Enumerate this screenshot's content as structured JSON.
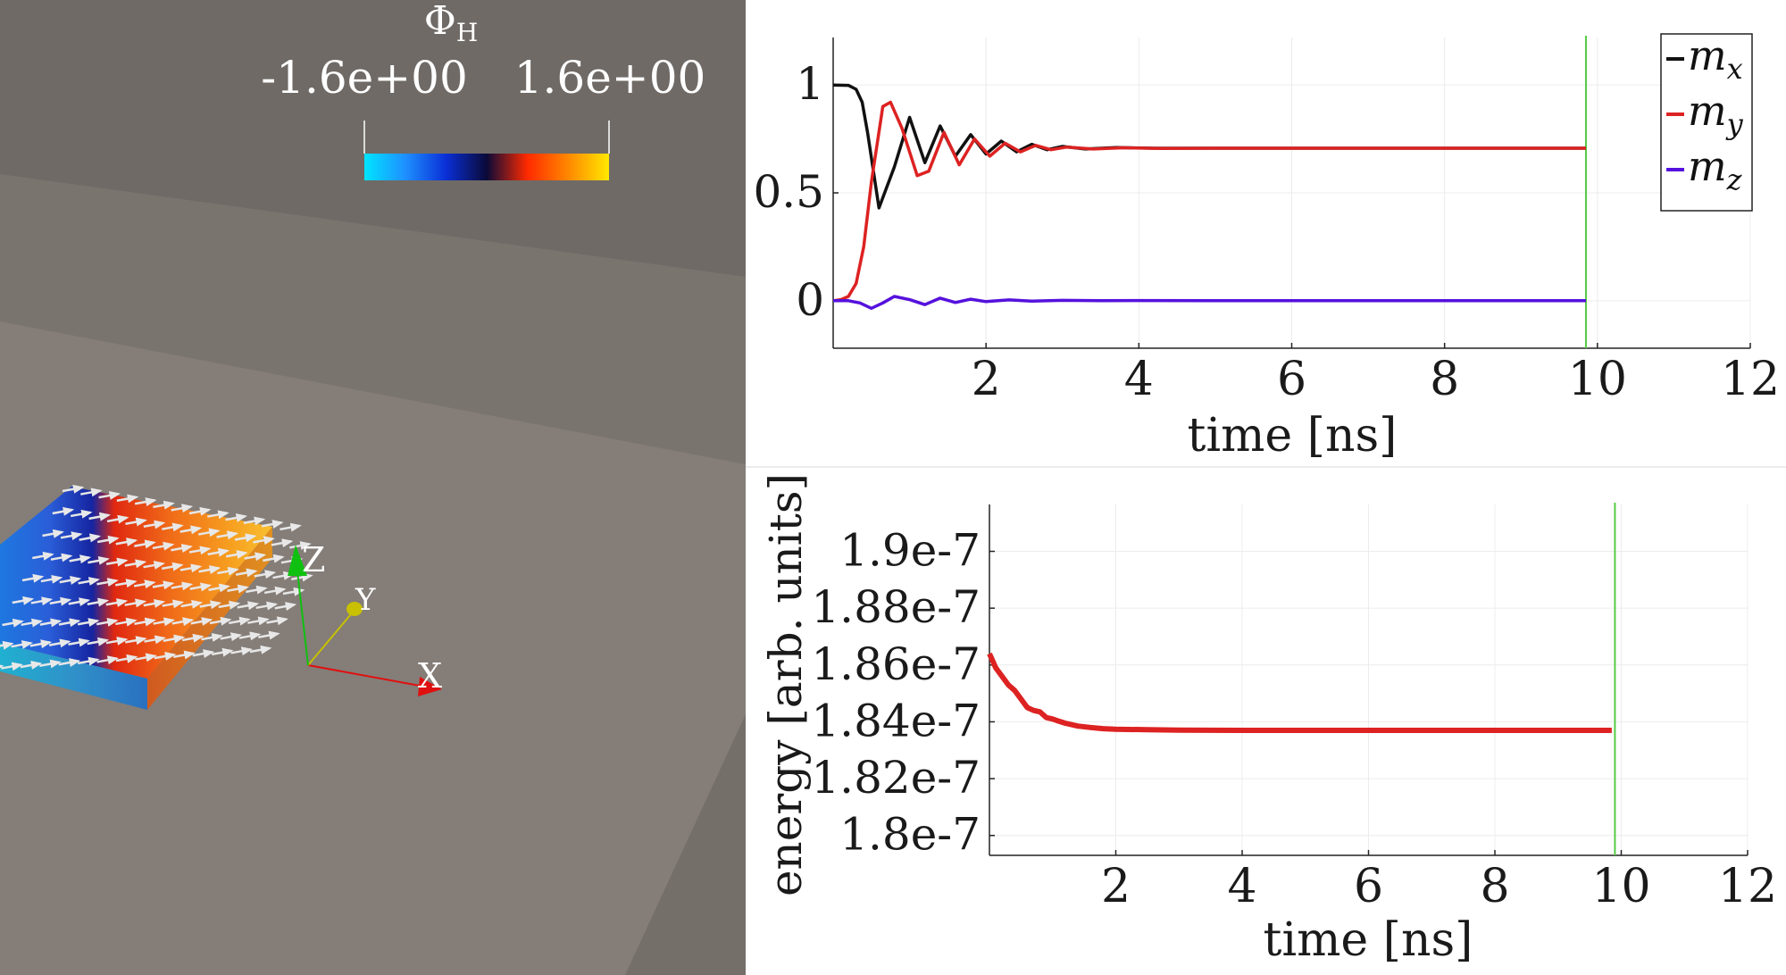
{
  "scene": {
    "colorbar": {
      "title": "Φ",
      "title_sub": "H",
      "min_label": "-1.6e+00",
      "max_label": "1.6e+00",
      "gradient": [
        "#00e5ff",
        "#1e90ff",
        "#0a2fd6",
        "#0a0a38",
        "#ff2a00",
        "#ff8800",
        "#ffe800"
      ]
    },
    "axes": {
      "x_label": "X",
      "y_label": "Y",
      "z_label": "Z",
      "x_color": "#e01010",
      "y_color": "#c8c000",
      "z_color": "#10c010"
    },
    "background_colors": [
      "#6f6a66",
      "#7a746f",
      "#847d78"
    ]
  },
  "chart_data": [
    {
      "type": "line",
      "xlabel": "time [ns]",
      "ylabel": "",
      "xlim": [
        0,
        12
      ],
      "ylim": [
        -0.22,
        1.22
      ],
      "xticks": [
        2,
        4,
        6,
        8,
        10,
        12
      ],
      "yticks": [
        0,
        0.5,
        1
      ],
      "ytick_labels": [
        "0",
        "0.5",
        "1"
      ],
      "grid": true,
      "legend": "top-right",
      "marker_line_x": 9.85,
      "marker_line_color": "#55cc44",
      "series": [
        {
          "name": "m",
          "sub": "x",
          "color": "#111111",
          "x": [
            0,
            0.2,
            0.3,
            0.38,
            0.45,
            0.6,
            0.8,
            1.0,
            1.2,
            1.4,
            1.6,
            1.8,
            2.0,
            2.2,
            2.4,
            2.6,
            2.8,
            3.0,
            3.3,
            3.7,
            4.2,
            5,
            9.85
          ],
          "y": [
            1.0,
            0.998,
            0.98,
            0.92,
            0.78,
            0.43,
            0.62,
            0.85,
            0.64,
            0.81,
            0.67,
            0.77,
            0.68,
            0.74,
            0.69,
            0.725,
            0.7,
            0.715,
            0.703,
            0.71,
            0.707,
            0.707,
            0.707
          ]
        },
        {
          "name": "m",
          "sub": "y",
          "color": "#dd2222",
          "x": [
            0,
            0.1,
            0.2,
            0.3,
            0.4,
            0.5,
            0.65,
            0.75,
            0.9,
            1.1,
            1.25,
            1.45,
            1.65,
            1.85,
            2.05,
            2.25,
            2.45,
            2.65,
            2.85,
            3.05,
            3.4,
            3.8,
            4.3,
            5,
            9.85
          ],
          "y": [
            0.0,
            0.005,
            0.02,
            0.08,
            0.25,
            0.55,
            0.9,
            0.92,
            0.8,
            0.58,
            0.6,
            0.78,
            0.63,
            0.75,
            0.67,
            0.73,
            0.69,
            0.72,
            0.7,
            0.712,
            0.703,
            0.709,
            0.706,
            0.707,
            0.707
          ]
        },
        {
          "name": "m",
          "sub": "z",
          "color": "#5511dd",
          "x": [
            0,
            0.2,
            0.35,
            0.5,
            0.65,
            0.8,
            1.0,
            1.2,
            1.4,
            1.6,
            1.8,
            2.0,
            2.3,
            2.6,
            3.0,
            3.5,
            4.0,
            5,
            9.85
          ],
          "y": [
            0.0,
            0.0,
            -0.01,
            -0.035,
            -0.01,
            0.02,
            0.005,
            -0.018,
            0.012,
            -0.008,
            0.007,
            -0.004,
            0.004,
            -0.002,
            0.002,
            0.0,
            0.001,
            0.0,
            0.0
          ]
        }
      ]
    },
    {
      "type": "line",
      "xlabel": "time [ns]",
      "ylabel": "energy [arb. units]",
      "xlim": [
        0,
        12
      ],
      "ylim": [
        1.793e-07,
        1.9165e-07
      ],
      "xticks": [
        2,
        4,
        6,
        8,
        10,
        12
      ],
      "yticks": [
        1.8e-07,
        1.82e-07,
        1.84e-07,
        1.86e-07,
        1.88e-07,
        1.9e-07
      ],
      "ytick_labels": [
        "1.8e-7",
        "1.82e-7",
        "1.84e-7",
        "1.86e-7",
        "1.88e-7",
        "1.9e-7"
      ],
      "grid": true,
      "marker_line_x": 9.9,
      "marker_line_color": "#55cc44",
      "series": [
        {
          "color": "#dd2222",
          "x": [
            0,
            0.1,
            0.2,
            0.3,
            0.4,
            0.5,
            0.6,
            0.7,
            0.8,
            0.9,
            1.0,
            1.1,
            1.2,
            1.4,
            1.6,
            1.8,
            2.0,
            2.5,
            3.0,
            4,
            6,
            8,
            9.85
          ],
          "y": [
            1.864e-07,
            1.859e-07,
            1.856e-07,
            1.853e-07,
            1.851e-07,
            1.848e-07,
            1.845e-07,
            1.844e-07,
            1.8435e-07,
            1.8415e-07,
            1.841e-07,
            1.8402e-07,
            1.8395e-07,
            1.8385e-07,
            1.838e-07,
            1.8376e-07,
            1.8374e-07,
            1.8372e-07,
            1.8371e-07,
            1.837e-07,
            1.837e-07,
            1.837e-07,
            1.837e-07
          ]
        }
      ]
    }
  ]
}
